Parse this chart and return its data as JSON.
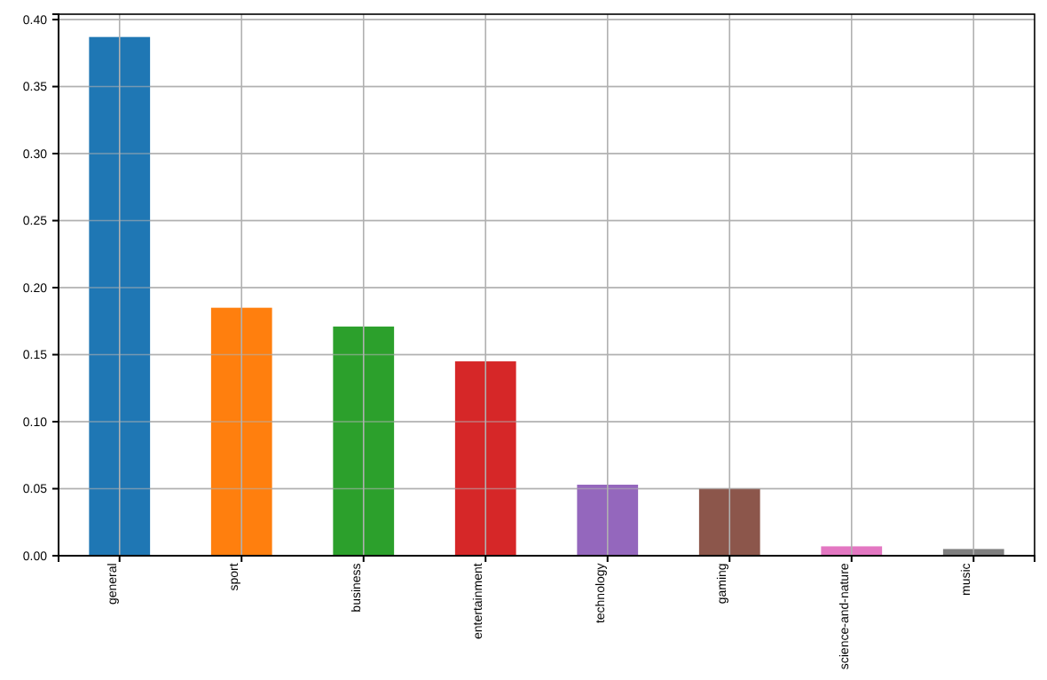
{
  "chart_data": {
    "type": "bar",
    "categories": [
      "general",
      "sport",
      "business",
      "entertainment",
      "technology",
      "gaming",
      "science-and-nature",
      "music"
    ],
    "values": [
      0.387,
      0.185,
      0.171,
      0.145,
      0.053,
      0.05,
      0.007,
      0.005
    ],
    "colors": [
      "#1f77b4",
      "#ff7f0e",
      "#2ca02c",
      "#d62728",
      "#9467bd",
      "#8c564b",
      "#e377c2",
      "#7f7f7f"
    ],
    "ylim": [
      0,
      0.404
    ],
    "yticks": [
      {
        "value": 0,
        "label": "0.00"
      },
      {
        "value": 0.05,
        "label": "0.05"
      },
      {
        "value": 0.1,
        "label": "0.10"
      },
      {
        "value": 0.15,
        "label": "0.15"
      },
      {
        "value": 0.2,
        "label": "0.20"
      },
      {
        "value": 0.25,
        "label": "0.25"
      },
      {
        "value": 0.3,
        "label": "0.30"
      },
      {
        "value": 0.35,
        "label": "0.35"
      },
      {
        "value": 0.4,
        "label": "0.40"
      }
    ],
    "grid": true
  }
}
